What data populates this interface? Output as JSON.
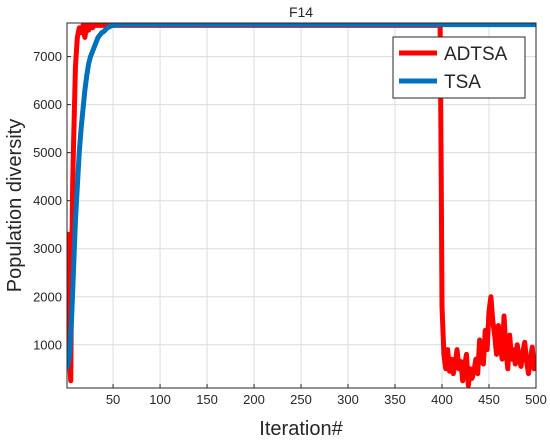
{
  "chart_data": {
    "type": "line",
    "title": "F14",
    "xlabel": "Iteration#",
    "ylabel": "Population diversity",
    "xlim": [
      1,
      500
    ],
    "ylim": [
      100,
      7700
    ],
    "x_ticks": [
      50,
      100,
      150,
      200,
      250,
      300,
      350,
      400,
      450,
      500
    ],
    "y_ticks": [
      1000,
      2000,
      3000,
      4000,
      5000,
      6000,
      7000
    ],
    "grid": true,
    "legend_position": "top-right",
    "series": [
      {
        "name": "ADTSA",
        "color": "#ff0000",
        "x": [
          1,
          2,
          3,
          4,
          5,
          6,
          7,
          8,
          9,
          10,
          12,
          14,
          16,
          18,
          20,
          22,
          24,
          26,
          28,
          30,
          35,
          40,
          50,
          100,
          200,
          300,
          398,
          399,
          400,
          401,
          402,
          404,
          406,
          408,
          410,
          412,
          414,
          416,
          418,
          420,
          422,
          424,
          426,
          428,
          430,
          432,
          434,
          436,
          438,
          440,
          442,
          444,
          446,
          448,
          450,
          452,
          454,
          456,
          458,
          460,
          462,
          464,
          466,
          468,
          470,
          472,
          474,
          476,
          478,
          480,
          482,
          484,
          486,
          488,
          490,
          492,
          494,
          496,
          498,
          500
        ],
        "y": [
          3350,
          2600,
          1500,
          600,
          250,
          2600,
          4300,
          5200,
          6000,
          6800,
          7400,
          7600,
          7500,
          7650,
          7400,
          7650,
          7550,
          7650,
          7600,
          7650,
          7650,
          7650,
          7650,
          7650,
          7650,
          7650,
          7650,
          5000,
          1800,
          1300,
          800,
          500,
          900,
          450,
          700,
          400,
          600,
          900,
          500,
          650,
          250,
          550,
          800,
          150,
          500,
          300,
          450,
          700,
          400,
          1100,
          850,
          600,
          1300,
          900,
          1700,
          2000,
          1500,
          1200,
          800,
          1400,
          1000,
          700,
          1600,
          900,
          500,
          1200,
          700,
          900,
          600,
          1000,
          750,
          550,
          850,
          1050,
          650,
          400,
          700,
          950,
          500,
          750
        ]
      },
      {
        "name": "TSA",
        "color": "#0072bd",
        "x": [
          1,
          2,
          3,
          4,
          5,
          6,
          8,
          10,
          12,
          14,
          16,
          18,
          20,
          22,
          24,
          26,
          28,
          30,
          32,
          34,
          36,
          38,
          40,
          42,
          44,
          46,
          48,
          50,
          55,
          60,
          70,
          100,
          200,
          300,
          400,
          500
        ],
        "y": [
          500,
          600,
          700,
          900,
          1200,
          1600,
          2600,
          3600,
          4300,
          5000,
          5500,
          5900,
          6300,
          6600,
          6850,
          7000,
          7100,
          7200,
          7300,
          7400,
          7450,
          7500,
          7520,
          7560,
          7600,
          7620,
          7640,
          7650,
          7660,
          7665,
          7665,
          7665,
          7665,
          7665,
          7665,
          7665
        ]
      }
    ]
  }
}
